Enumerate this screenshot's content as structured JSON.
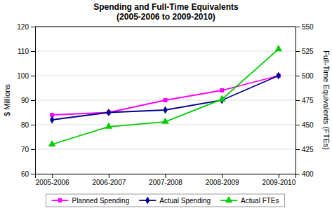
{
  "chart_data": {
    "type": "line",
    "title": "Spending and Full-Time Equivalents\n(2005-2006 to 2009-2010)",
    "categories": [
      "2005-2006",
      "2006-2007",
      "2007-2008",
      "2008-2009",
      "2009-2010"
    ],
    "series": [
      {
        "name": "Planned Spending",
        "color": "#ff00ff",
        "marker": "square",
        "values": [
          84,
          85,
          90,
          94,
          100
        ]
      },
      {
        "name": "Actual Spending",
        "color": "#00008b",
        "marker": "diamond",
        "values": [
          82,
          85,
          86,
          90,
          100
        ]
      },
      {
        "name": "Actual FTEs",
        "color": "#00cc00",
        "marker": "triangle",
        "axis": "y2",
        "values": [
          430,
          448,
          453,
          476,
          527
        ]
      }
    ],
    "ylabel": "$ Millions",
    "y2label": "Full-Time Equivalents (FTEs)",
    "ylim": [
      60,
      120
    ],
    "yticks": [
      60,
      70,
      80,
      90,
      100,
      110,
      120
    ],
    "y2lim": [
      400,
      550
    ],
    "y2ticks": [
      400,
      425,
      450,
      475,
      500,
      525,
      550
    ],
    "grid": true,
    "legend": "bottom"
  }
}
